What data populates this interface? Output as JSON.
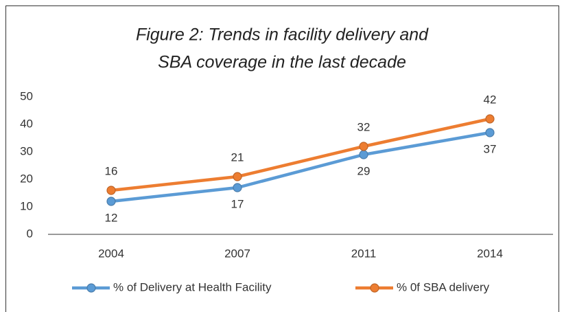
{
  "chart_data": {
    "type": "line",
    "title": [
      "Figure 2: Trends in facility delivery and",
      "SBA  coverage in the last decade"
    ],
    "categories": [
      "2004",
      "2007",
      "2011",
      "2014"
    ],
    "series": [
      {
        "name": "% of Delivery at Health Facility",
        "color": "#5b9bd5",
        "values": [
          12,
          17,
          29,
          37
        ]
      },
      {
        "name": "% 0f SBA delivery",
        "color": "#ed7d31",
        "values": [
          16,
          21,
          32,
          42
        ]
      }
    ],
    "ylim": [
      0,
      50
    ],
    "yticks": [
      0,
      10,
      20,
      30,
      40,
      50
    ],
    "grid": false,
    "legend": "bottom"
  }
}
